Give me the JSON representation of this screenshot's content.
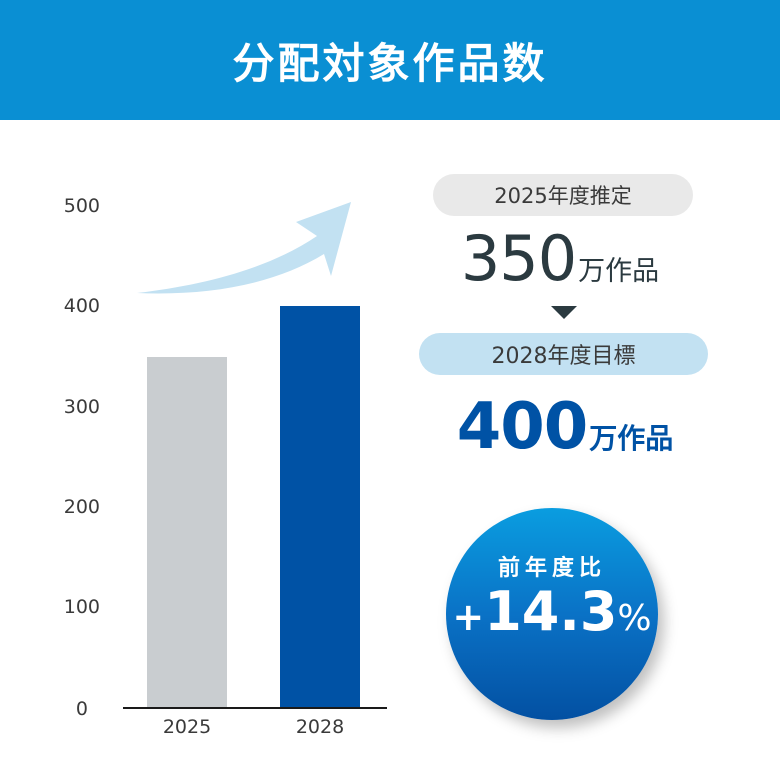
{
  "header": {
    "title": "分配対象作品数"
  },
  "chart_data": {
    "type": "bar",
    "title": "分配対象作品数",
    "categories": [
      "2025",
      "2028"
    ],
    "values": [
      350,
      400
    ],
    "unit": "万作品",
    "xlabel": "",
    "ylabel": "",
    "ylim": [
      0,
      500
    ],
    "yticks": [
      "0",
      "100",
      "200",
      "300",
      "400",
      "500"
    ],
    "grid": false,
    "legend": null,
    "bar_colors": [
      "#c9cdd0",
      "#0052a5"
    ],
    "annotations": [
      "upward arrow indicating growth from 2025 to 2028"
    ]
  },
  "axis": {
    "yticks": [
      {
        "label": "500",
        "value": 500
      },
      {
        "label": "400",
        "value": 400
      },
      {
        "label": "300",
        "value": 300
      },
      {
        "label": "200",
        "value": 200
      },
      {
        "label": "100",
        "value": 100
      },
      {
        "label": "0",
        "value": 0
      }
    ],
    "xlabels": [
      "2025",
      "2028"
    ]
  },
  "summary": {
    "estimate": {
      "label": "2025年度推定",
      "value": "350",
      "unit": "万作品"
    },
    "target": {
      "label": "2028年度目標",
      "value": "400",
      "unit": "万作品"
    },
    "growth": {
      "label": "前年度比",
      "sign": "+",
      "value": "14.3",
      "unit": "%"
    }
  },
  "colors": {
    "header": "#0a8fd3",
    "bar_2025": "#c9cdd0",
    "bar_2028": "#0052a5",
    "arrow": "#c2e1f2",
    "pill_2025": "#e9e9e9",
    "pill_2028": "#c2e1f2",
    "text_dark": "#2b3a40",
    "accent_blue": "#0052a5"
  }
}
